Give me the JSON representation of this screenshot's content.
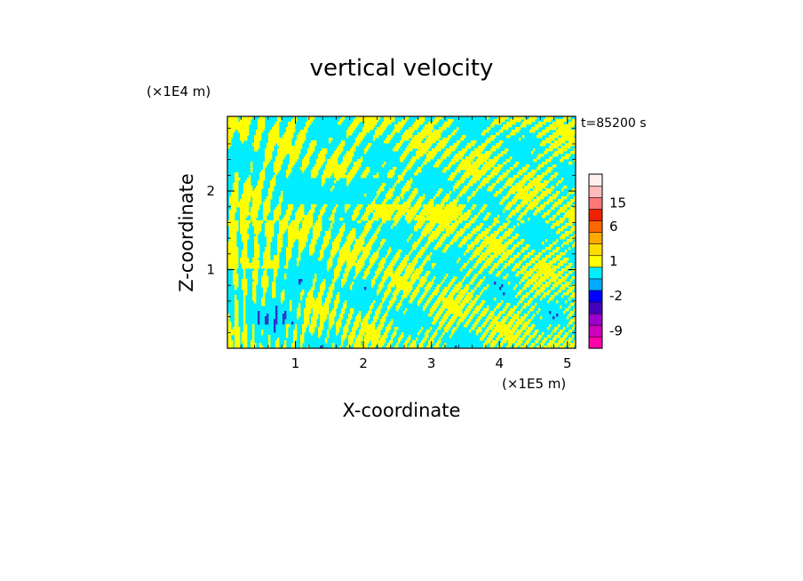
{
  "chart_data": {
    "type": "heatmap",
    "title": "vertical velocity",
    "xlabel": "X-coordinate",
    "ylabel": "Z-coordinate",
    "x_unit": "(×1E5 m)",
    "y_unit": "(×1E4 m)",
    "time_label": "t=85200 s",
    "xlim": [
      0,
      5.12
    ],
    "ylim": [
      0,
      2.95
    ],
    "x_ticks": [
      1,
      2,
      3,
      4,
      5
    ],
    "y_ticks": [
      1,
      2
    ],
    "x_tick_labels": [
      "1",
      "2",
      "3",
      "4",
      "5"
    ],
    "y_tick_labels": [
      "1",
      "2"
    ],
    "field_colors": {
      "positive": "#ffff00",
      "negative": "#00eeff",
      "strong_negative": "#3333cc"
    },
    "colorbar": {
      "colors": [
        "#ff00aa",
        "#cc00bb",
        "#9900cc",
        "#4400bb",
        "#0000ff",
        "#00aaff",
        "#00eeff",
        "#ffff00",
        "#ffdd00",
        "#ffaa00",
        "#ff6600",
        "#ee2200",
        "#ff7777",
        "#ffbbbb",
        "#ffeeee"
      ],
      "tick_labels": [
        "-9",
        "-2",
        "1",
        "6",
        "15"
      ],
      "tick_levels": [
        -9,
        -2,
        1,
        6,
        15
      ]
    }
  }
}
